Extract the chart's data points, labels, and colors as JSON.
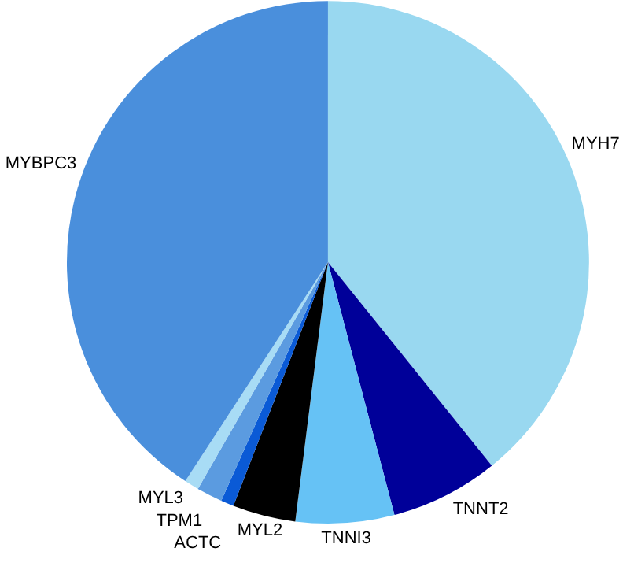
{
  "chart_data": {
    "type": "pie",
    "categories": [
      "MYH7",
      "TNNT2",
      "TNNI3",
      "MYL2",
      "ACTC",
      "TPM1",
      "MYL3",
      "MYBPC3"
    ],
    "values": [
      39.2,
      6.7,
      6.1,
      3.9,
      0.8,
      1.6,
      0.9,
      40.8
    ],
    "colors": [
      "#99d8f0",
      "#000099",
      "#66c2f5",
      "#000000",
      "#0a5ad6",
      "#5b9be0",
      "#a8dcf5",
      "#4a8fdc"
    ]
  }
}
